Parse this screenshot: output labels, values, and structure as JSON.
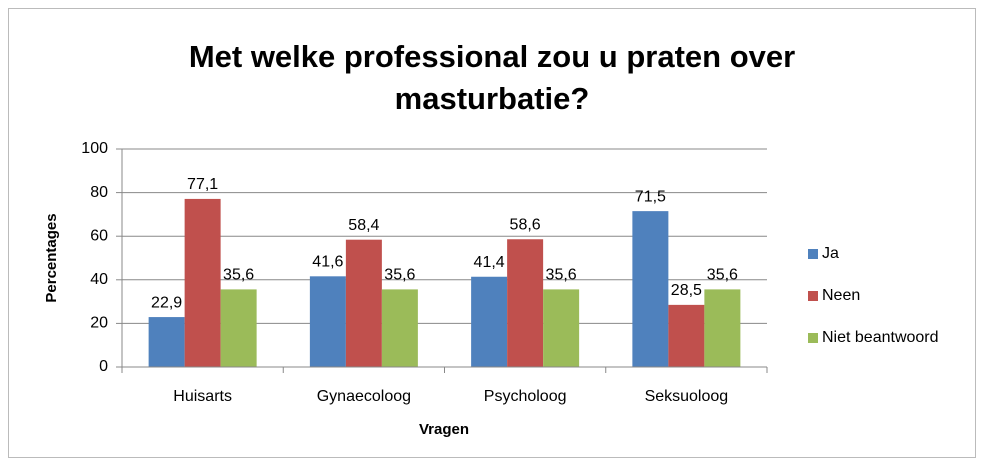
{
  "chart_data": {
    "type": "bar",
    "title": "Met welke professional zou u praten over masturbatie?",
    "x_label": "Vragen",
    "y_label": "Percentages",
    "categories": [
      "Huisarts",
      "Gynaecoloog",
      "Psycholoog",
      "Seksuoloog"
    ],
    "series": [
      {
        "name": "Ja",
        "color": "#4f81bd",
        "values": [
          22.9,
          41.6,
          41.4,
          71.5
        ],
        "value_labels": [
          "22,9",
          "41,6",
          "41,4",
          "71,5"
        ]
      },
      {
        "name": "Neen",
        "color": "#c0504d",
        "values": [
          77.1,
          58.4,
          58.6,
          28.5
        ],
        "value_labels": [
          "77,1",
          "58,4",
          "58,6",
          "28,5"
        ]
      },
      {
        "name": "Niet beantwoord",
        "color": "#9bbb59",
        "values": [
          35.6,
          35.6,
          35.6,
          35.6
        ],
        "value_labels": [
          "35,6",
          "35,6",
          "35,6",
          "35,6"
        ]
      }
    ],
    "ylim": [
      0,
      100
    ],
    "yticks": [
      0,
      20,
      40,
      60,
      80,
      100
    ],
    "grid": true,
    "legend": "right"
  }
}
